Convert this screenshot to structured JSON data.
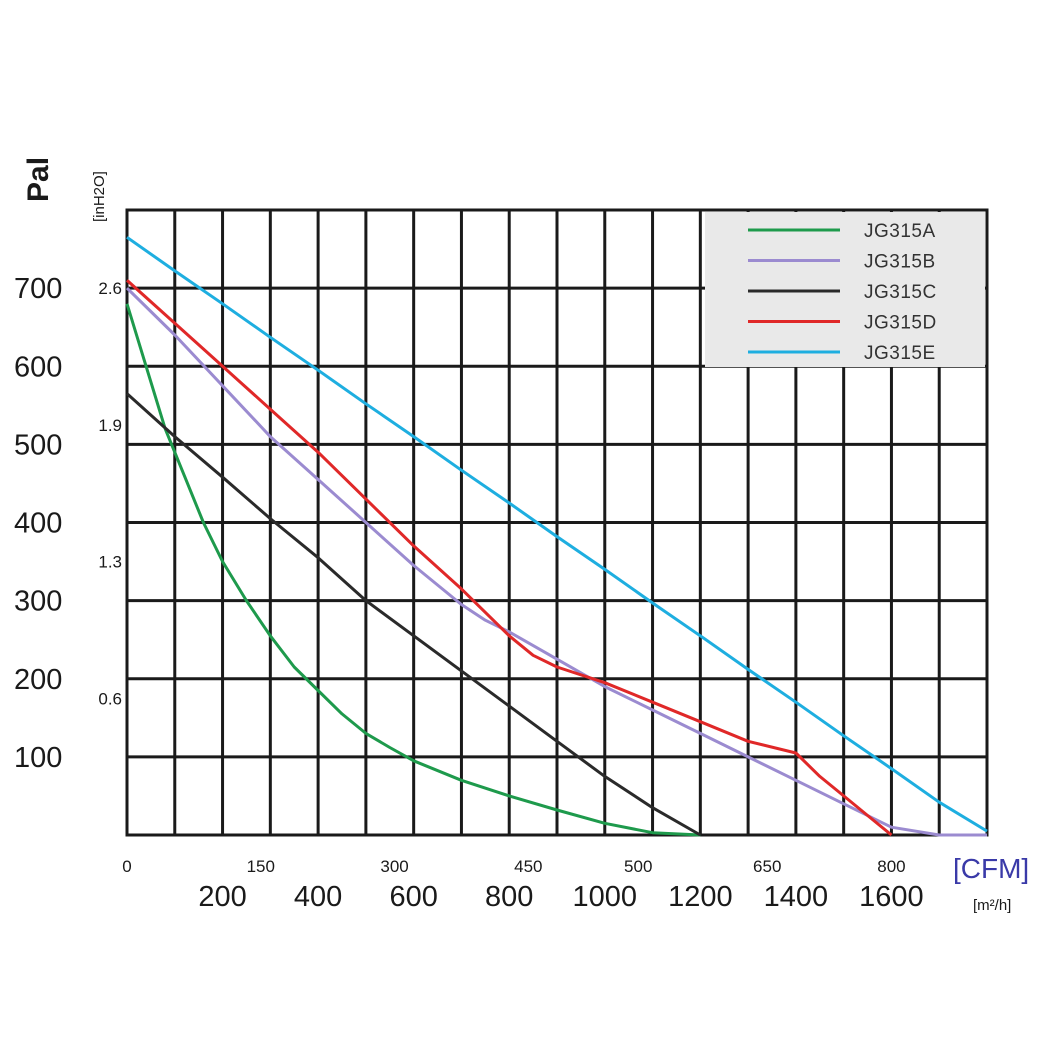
{
  "chart_data": {
    "type": "line",
    "y_label": "Pal",
    "y_label_secondary": "[inH2O]",
    "x_label": "[CFM]",
    "x_label_secondary": "[m²/h]",
    "xlim": [
      0,
      1800
    ],
    "ylim": [
      0,
      800
    ],
    "y_ticks_pa": [
      "700",
      "600",
      "500",
      "400",
      "300",
      "200",
      "100"
    ],
    "y_ticks_pa_values": [
      700,
      600,
      500,
      400,
      300,
      200,
      100
    ],
    "y_ticks_inh2o": [
      "2.6",
      "1.9",
      "1.3",
      "0.6"
    ],
    "y_ticks_inh2o_values": [
      700,
      525,
      350,
      175
    ],
    "x_ticks_cfm": [
      "0",
      "150",
      "300",
      "450",
      "500",
      "650",
      "800"
    ],
    "x_ticks_cfm_values": [
      0,
      280,
      560,
      840,
      1070,
      1340,
      1600
    ],
    "x_ticks_m3h": [
      "200",
      "400",
      "600",
      "800",
      "1000",
      "1200",
      "1400",
      "1600"
    ],
    "x_ticks_m3h_values": [
      200,
      400,
      600,
      800,
      1000,
      1200,
      1400,
      1600
    ],
    "grid": true,
    "legend_position": "top-right",
    "series": [
      {
        "name": "JG315A",
        "color": "#1e9a4c",
        "x": [
          0,
          40,
          80,
          120,
          160,
          200,
          250,
          300,
          350,
          400,
          450,
          500,
          550,
          600,
          700,
          800,
          900,
          1000,
          1100,
          1200
        ],
        "y": [
          680,
          600,
          520,
          460,
          400,
          350,
          300,
          255,
          215,
          185,
          155,
          130,
          112,
          95,
          70,
          50,
          32,
          15,
          3,
          0
        ]
      },
      {
        "name": "JG315B",
        "color": "#9b8bd0",
        "x": [
          0,
          100,
          200,
          300,
          400,
          500,
          600,
          700,
          750,
          800,
          900,
          1000,
          1100,
          1200,
          1300,
          1400,
          1500,
          1600,
          1700,
          1800
        ],
        "y": [
          700,
          640,
          575,
          510,
          455,
          400,
          345,
          295,
          275,
          260,
          225,
          190,
          160,
          130,
          100,
          70,
          40,
          10,
          0,
          0
        ]
      },
      {
        "name": "JG315C",
        "color": "#2a2a2a",
        "x": [
          0,
          100,
          200,
          300,
          400,
          500,
          600,
          700,
          800,
          900,
          1000,
          1100,
          1200
        ],
        "y": [
          565,
          510,
          458,
          405,
          355,
          300,
          255,
          210,
          165,
          120,
          75,
          35,
          0
        ]
      },
      {
        "name": "JG315D",
        "color": "#e02828",
        "x": [
          0,
          100,
          200,
          300,
          400,
          500,
          600,
          700,
          800,
          850,
          900,
          1000,
          1100,
          1200,
          1300,
          1400,
          1450,
          1500,
          1550,
          1600
        ],
        "y": [
          710,
          655,
          600,
          545,
          490,
          430,
          370,
          315,
          255,
          230,
          215,
          195,
          170,
          145,
          120,
          105,
          75,
          50,
          25,
          0
        ]
      },
      {
        "name": "JG315E",
        "color": "#1eaee0",
        "x": [
          0,
          100,
          200,
          300,
          400,
          500,
          600,
          700,
          800,
          900,
          1000,
          1100,
          1200,
          1300,
          1400,
          1500,
          1600,
          1700,
          1800
        ],
        "y": [
          765,
          722,
          680,
          637,
          595,
          552,
          510,
          467,
          425,
          382,
          340,
          297,
          255,
          212,
          170,
          127,
          85,
          42,
          5
        ]
      }
    ]
  }
}
